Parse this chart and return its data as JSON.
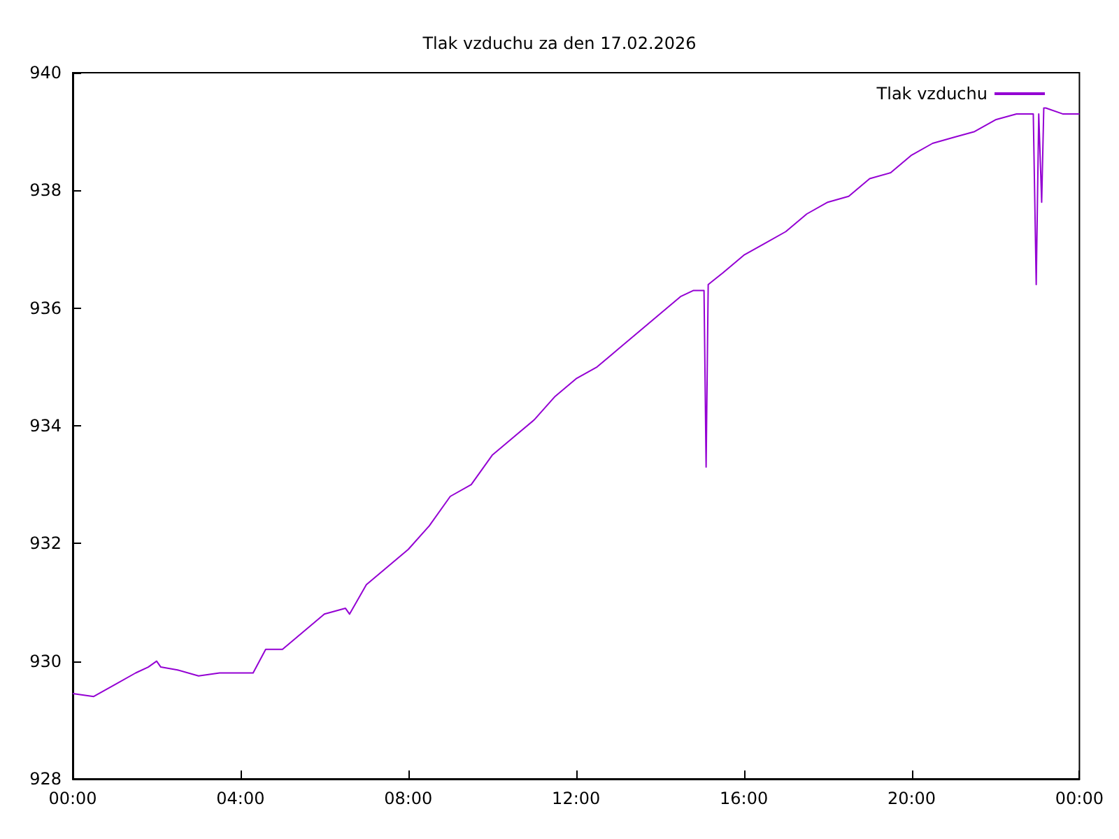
{
  "chart_data": {
    "type": "line",
    "title": "Tlak vzduchu za den 17.02.2026",
    "legend": "top right",
    "grid": false,
    "marker": "none",
    "line_style": "solid",
    "xlim": [
      0,
      24
    ],
    "xticks": [
      {
        "value": 0,
        "label": "00:00"
      },
      {
        "value": 4,
        "label": "04:00"
      },
      {
        "value": 8,
        "label": "08:00"
      },
      {
        "value": 12,
        "label": "12:00"
      },
      {
        "value": 16,
        "label": "16:00"
      },
      {
        "value": 20,
        "label": "20:00"
      },
      {
        "value": 24,
        "label": "00:00"
      }
    ],
    "ylim": [
      928,
      940
    ],
    "yticks": [
      928,
      930,
      932,
      934,
      936,
      938,
      940
    ],
    "series": [
      {
        "name": "Tlak vzduchu",
        "color": "#9400d3",
        "x": [
          0,
          0.5,
          1,
          1.5,
          1.8,
          2,
          2.1,
          2.5,
          3,
          3.5,
          4,
          4.3,
          4.6,
          5,
          5.5,
          6,
          6.5,
          6.6,
          7,
          7.5,
          8,
          8.5,
          9,
          9.5,
          10,
          10.5,
          11,
          11.5,
          12,
          12.5,
          13,
          13.5,
          14,
          14.5,
          14.8,
          15.05,
          15.1,
          15.15,
          15.5,
          16,
          16.5,
          17,
          17.5,
          18,
          18.5,
          19,
          19.5,
          20,
          20.5,
          21,
          21.5,
          22,
          22.5,
          22.9,
          22.97,
          23.03,
          23.1,
          23.15,
          23.2,
          23.6,
          24
        ],
        "values": [
          929.45,
          929.4,
          929.6,
          929.8,
          929.9,
          930.0,
          929.9,
          929.85,
          929.75,
          929.8,
          929.8,
          929.8,
          930.2,
          930.2,
          930.5,
          930.8,
          930.9,
          930.8,
          931.3,
          931.6,
          931.9,
          932.3,
          932.8,
          933.0,
          933.5,
          933.8,
          934.1,
          934.5,
          934.8,
          935.0,
          935.3,
          935.6,
          935.9,
          936.2,
          936.3,
          936.3,
          933.3,
          936.4,
          936.6,
          936.9,
          937.1,
          937.3,
          937.6,
          937.8,
          937.9,
          938.2,
          938.3,
          938.6,
          938.8,
          938.9,
          939.0,
          939.2,
          939.3,
          939.3,
          936.4,
          939.3,
          937.8,
          939.4,
          939.4,
          939.3,
          939.3
        ]
      }
    ]
  }
}
